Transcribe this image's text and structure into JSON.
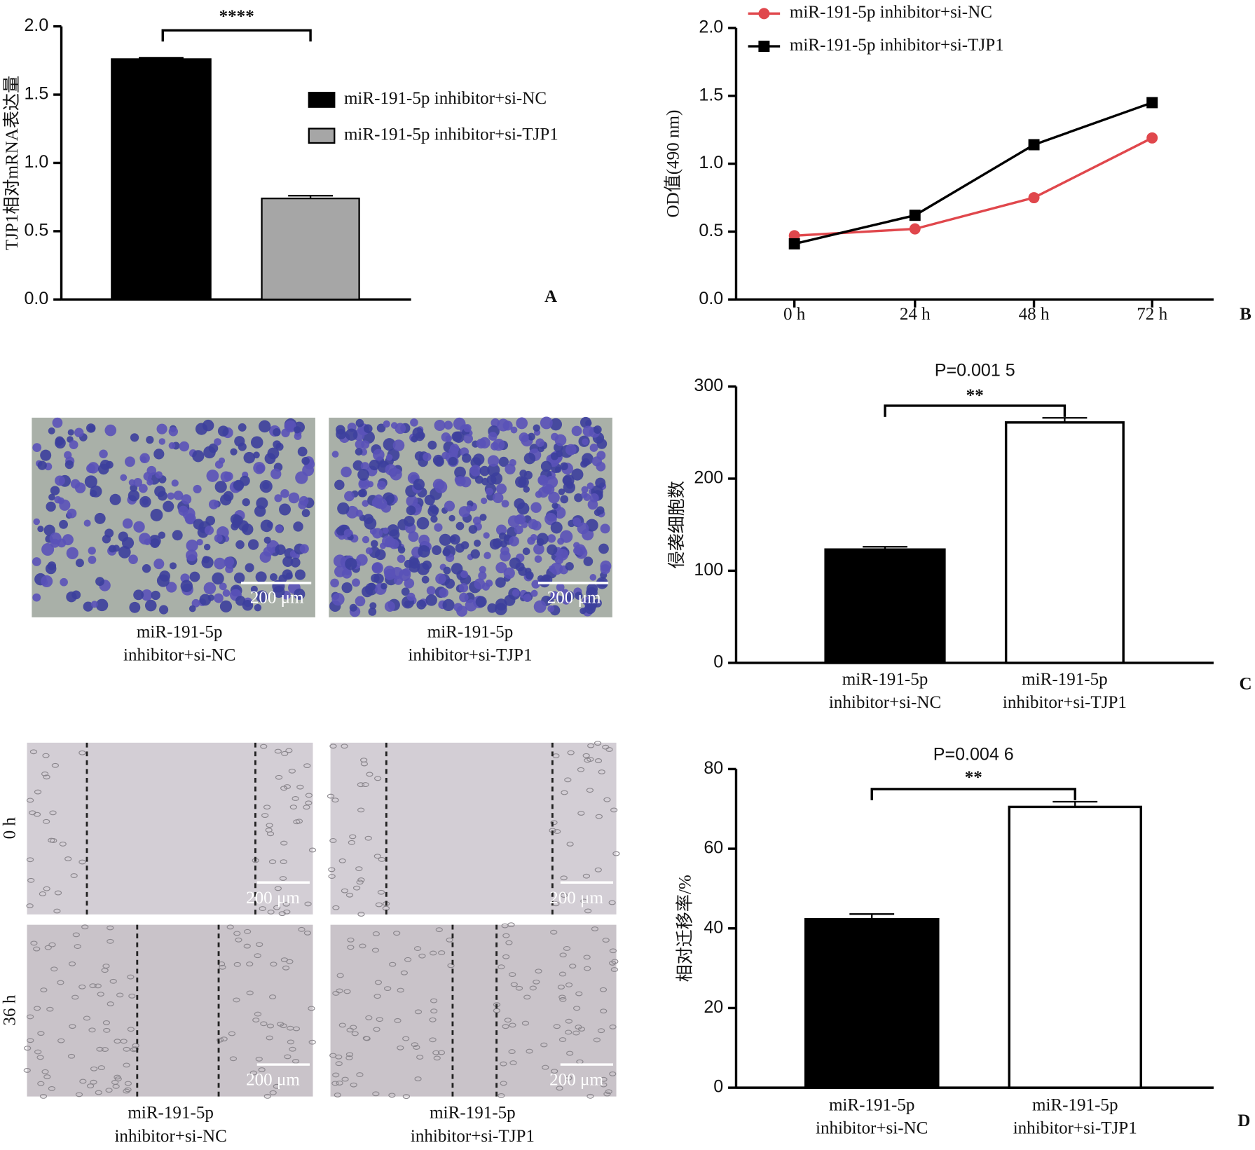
{
  "chart_data": [
    {
      "type": "bar",
      "ylabel": "TJP1相对mRNA表达量",
      "panel": "A",
      "annotation": "****",
      "series": [
        {
          "name": "miR-191-5p inhibitor+si-NC",
          "color": "#000000",
          "values": [
            1.76
          ],
          "errors": [
            0.01
          ]
        },
        {
          "name": "miR-191-5p inhibitor+si-TJP1",
          "color": "#a6a6a6",
          "values": [
            0.74
          ],
          "errors": [
            0.02
          ]
        }
      ],
      "ylim": [
        0,
        2
      ],
      "yticks": [
        {
          "value": 0,
          "label": "0.0"
        },
        {
          "value": 0.5,
          "label": "0.5"
        },
        {
          "value": 1,
          "label": "1.0"
        },
        {
          "value": 1.5,
          "label": "1.5"
        },
        {
          "value": 2,
          "label": "2.0"
        }
      ]
    },
    {
      "type": "line",
      "ylabel": "OD值(490 nm)",
      "panel": "B",
      "categories": [
        "0 h",
        "24 h",
        "48 h",
        "72 h"
      ],
      "series": [
        {
          "name": "miR-191-5p inhibitor+si-NC",
          "color": "#e0474c",
          "marker": "circle",
          "values": [
            0.47,
            0.52,
            0.75,
            1.19
          ]
        },
        {
          "name": "miR-191-5p inhibitor+si-TJP1",
          "color": "#000000",
          "marker": "square",
          "values": [
            0.41,
            0.62,
            1.14,
            1.45
          ]
        }
      ],
      "ylim": [
        0,
        2
      ],
      "yticks": [
        {
          "value": 0,
          "label": "0.0"
        },
        {
          "value": 0.5,
          "label": "0.5"
        },
        {
          "value": 1,
          "label": "1.0"
        },
        {
          "value": 1.5,
          "label": "1.5"
        },
        {
          "value": 2,
          "label": "2.0"
        }
      ]
    },
    {
      "type": "bar",
      "ylabel": "侵袭细胞数",
      "panel": "C",
      "p_value": "P=0.001 5",
      "annotation": "**",
      "categories": [
        "miR-191-5p inhibitor+si-NC",
        "miR-191-5p inhibitor+si-TJP1"
      ],
      "values": [
        123,
        261
      ],
      "errors": [
        3,
        5
      ],
      "colors": [
        "#000000",
        "#ffffff"
      ],
      "ylim": [
        0,
        300
      ],
      "yticks": [
        0,
        100,
        200,
        300
      ]
    },
    {
      "type": "bar",
      "ylabel": "相对迁移率/%",
      "panel": "D",
      "p_value": "P=0.004 6",
      "annotation": "**",
      "categories": [
        "miR-191-5p inhibitor+si-NC",
        "miR-191-5p inhibitor+si-TJP1"
      ],
      "values": [
        42.3,
        70.5
      ],
      "errors": [
        1.3,
        1.3
      ],
      "colors": [
        "#000000",
        "#ffffff"
      ],
      "ylim": [
        0,
        80
      ],
      "yticks": [
        0,
        20,
        40,
        60,
        80
      ]
    }
  ],
  "invasion_images": {
    "labels": [
      "miR-191-5p inhibitor+si-NC",
      "miR-191-5p inhibitor+si-TJP1"
    ],
    "scale_bar": "200 μm"
  },
  "migration_images": {
    "rows": [
      "0 h",
      "36 h"
    ],
    "labels": [
      "miR-191-5p inhibitor+si-NC",
      "miR-191-5p inhibitor+si-TJP1"
    ],
    "scale_bar": "200 μm"
  }
}
